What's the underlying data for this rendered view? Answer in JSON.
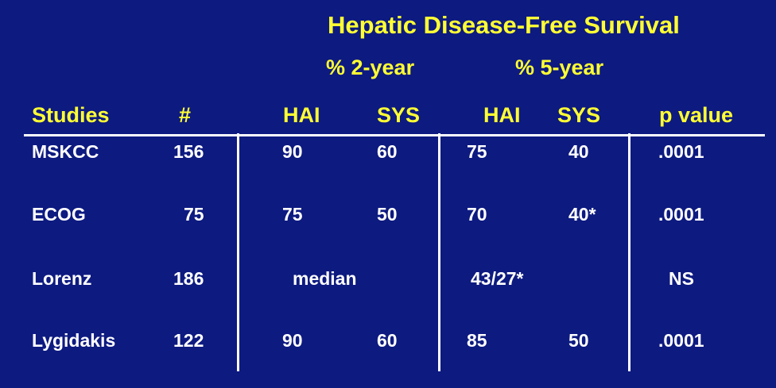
{
  "title": "Hepatic Disease-Free Survival",
  "groups": {
    "two_year": "% 2-year",
    "five_year": "% 5-year"
  },
  "headers": {
    "studies": "Studies",
    "n": "#",
    "hai_2yr": "HAI",
    "sys_2yr": "SYS",
    "hai_5yr": "HAI",
    "sys_5yr": "SYS",
    "p_value": "p value"
  },
  "rows": [
    {
      "study": "MSKCC",
      "n": "156",
      "hai_2yr": "90",
      "sys_2yr": "60",
      "hai_5yr": "75",
      "sys_5yr": "40",
      "p_value": ".0001"
    },
    {
      "study": "ECOG",
      "n": "75",
      "hai_2yr": "75",
      "sys_2yr": "50",
      "hai_5yr": "70",
      "sys_5yr": "40*",
      "p_value": ".0001"
    },
    {
      "study": "Lorenz",
      "n": "186",
      "median_label": "median",
      "five_year_value": "43/27*",
      "p_value": "NS"
    },
    {
      "study": "Lygidakis",
      "n": "122",
      "hai_2yr": "90",
      "sys_2yr": "60",
      "hai_5yr": "85",
      "sys_5yr": "50",
      "p_value": ".0001"
    }
  ],
  "colors": {
    "background": "#0d1a80",
    "heading": "#ffff33",
    "body_text": "#ffffff",
    "rules": "#ffffff"
  }
}
